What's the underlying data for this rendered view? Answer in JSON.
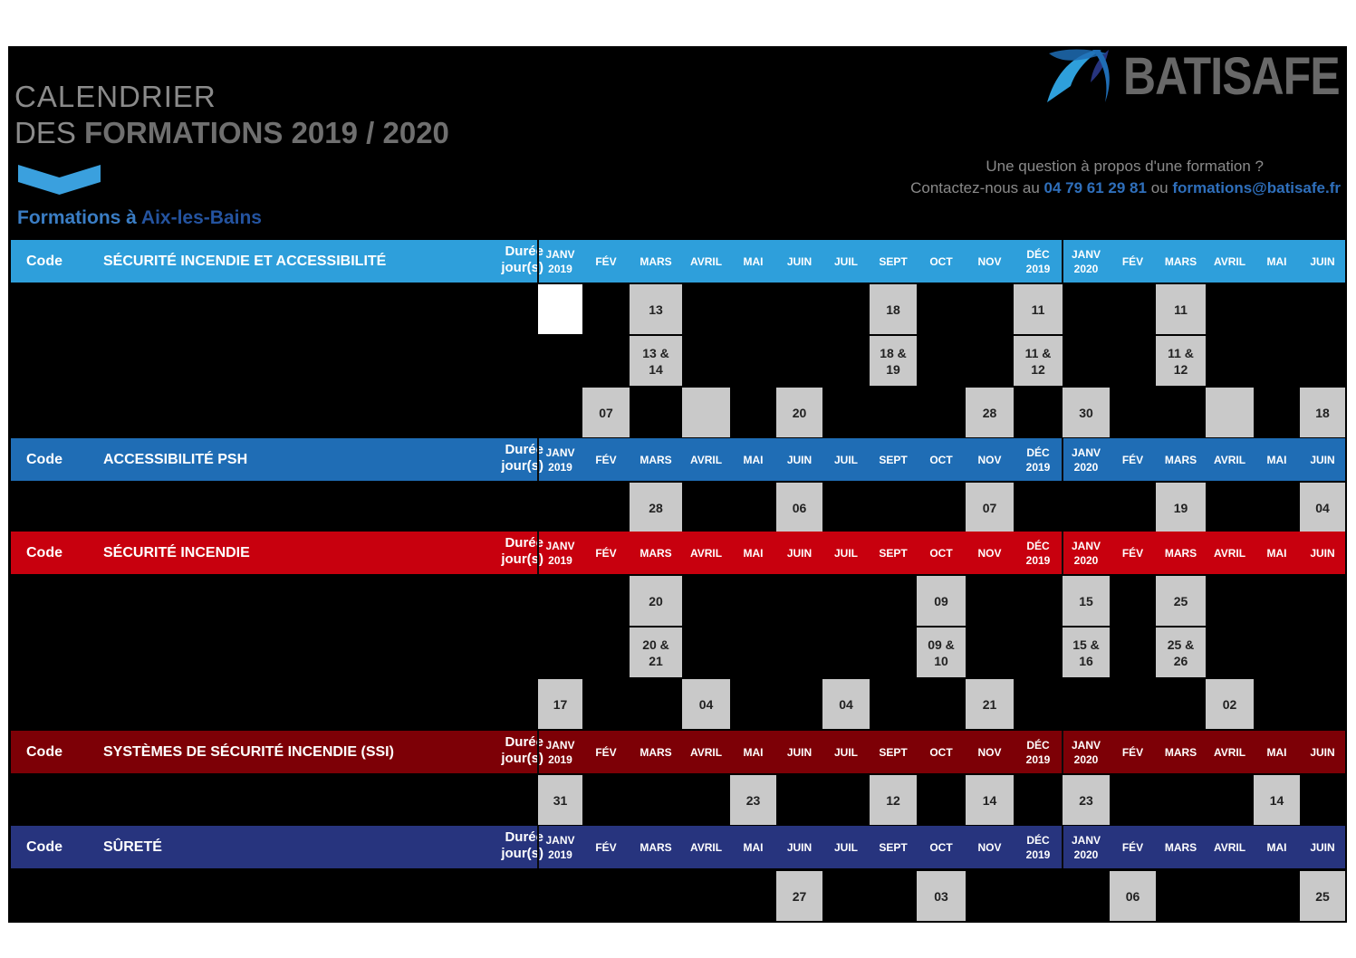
{
  "title": {
    "line1": "CALENDRIER",
    "line2_prefix": "DES ",
    "line2_bold": "FORMATIONS 2019 / 2020"
  },
  "location": {
    "prefix": "Formations à ",
    "city": "Aix-les-Bains"
  },
  "brand": {
    "name": "BATISAFE"
  },
  "contact": {
    "question": "Une question à propos d'une formation ?",
    "prefix": "Contactez-nous au ",
    "phone": "04 79 61 29 81",
    "middle": " ou ",
    "email": "formations@batisafe.fr"
  },
  "header_labels": {
    "code": "Code",
    "duree_line1": "Durée",
    "duree_line2": "jour(s)"
  },
  "months": [
    [
      "JANV",
      "2019"
    ],
    [
      "FÉV"
    ],
    [
      "MARS"
    ],
    [
      "AVRIL"
    ],
    [
      "MAI"
    ],
    [
      "JUIN"
    ],
    [
      "JUIL"
    ],
    [
      "SEPT"
    ],
    [
      "OCT"
    ],
    [
      "NOV"
    ],
    [
      "DÉC",
      "2019"
    ],
    [
      "JANV",
      "2020"
    ],
    [
      "FÉV"
    ],
    [
      "MARS"
    ],
    [
      "AVRIL"
    ],
    [
      "MAI"
    ],
    [
      "JUIN"
    ]
  ],
  "colors": {
    "blue_light": "#2e9fdb",
    "blue": "#1f6db5",
    "red": "#c8000e",
    "dark_red": "#7d0006",
    "navy": "#27347e",
    "cell_gray": "#c9c9c9"
  },
  "sections": [
    {
      "title": "SÉCURITÉ INCENDIE ET ACCESSIBILITÉ",
      "color_key": "blue_light",
      "rows": [
        [
          {
            "m": 0,
            "v": "",
            "white": true
          },
          {
            "m": 2,
            "v": "13"
          },
          {
            "m": 7,
            "v": "18"
          },
          {
            "m": 10,
            "v": "11"
          },
          {
            "m": 13,
            "v": "11"
          }
        ],
        [
          {
            "m": 2,
            "v": "13 & 14"
          },
          {
            "m": 7,
            "v": "18 & 19"
          },
          {
            "m": 10,
            "v": "11 & 12"
          },
          {
            "m": 13,
            "v": "11 & 12"
          }
        ],
        [
          {
            "m": 1,
            "v": "07"
          },
          {
            "m": 3,
            "v": ""
          },
          {
            "m": 5,
            "v": "20"
          },
          {
            "m": 9,
            "v": "28"
          },
          {
            "m": 11,
            "v": "30"
          },
          {
            "m": 14,
            "v": ""
          },
          {
            "m": 16,
            "v": "18"
          }
        ]
      ]
    },
    {
      "title": "ACCESSIBILITÉ PSH",
      "color_key": "blue",
      "rows": [
        [
          {
            "m": 2,
            "v": "28"
          },
          {
            "m": 5,
            "v": "06"
          },
          {
            "m": 9,
            "v": "07"
          },
          {
            "m": 13,
            "v": "19"
          },
          {
            "m": 16,
            "v": "04"
          }
        ]
      ]
    },
    {
      "title": "SÉCURITÉ INCENDIE",
      "color_key": "red",
      "rows": [
        [
          {
            "m": 2,
            "v": "20"
          },
          {
            "m": 8,
            "v": "09"
          },
          {
            "m": 11,
            "v": "15"
          },
          {
            "m": 13,
            "v": "25"
          }
        ],
        [
          {
            "m": 2,
            "v": "20 & 21"
          },
          {
            "m": 8,
            "v": "09 & 10"
          },
          {
            "m": 11,
            "v": "15 & 16"
          },
          {
            "m": 13,
            "v": "25 & 26"
          }
        ],
        [
          {
            "m": 0,
            "v": "17"
          },
          {
            "m": 3,
            "v": "04"
          },
          {
            "m": 6,
            "v": "04"
          },
          {
            "m": 9,
            "v": "21"
          },
          {
            "m": 14,
            "v": "02"
          }
        ]
      ]
    },
    {
      "title": "SYSTÈMES DE SÉCURITÉ INCENDIE (SSI)",
      "color_key": "dark_red",
      "rows": [
        [
          {
            "m": 0,
            "v": "31"
          },
          {
            "m": 4,
            "v": "23"
          },
          {
            "m": 7,
            "v": "12"
          },
          {
            "m": 9,
            "v": "14"
          },
          {
            "m": 11,
            "v": "23"
          },
          {
            "m": 15,
            "v": "14"
          }
        ]
      ]
    },
    {
      "title": "SÛRETÉ",
      "color_key": "navy",
      "rows": [
        [
          {
            "m": 5,
            "v": "27"
          },
          {
            "m": 8,
            "v": "03"
          },
          {
            "m": 12,
            "v": "06"
          },
          {
            "m": 16,
            "v": "25"
          }
        ]
      ]
    }
  ]
}
